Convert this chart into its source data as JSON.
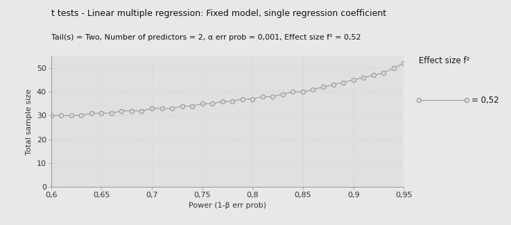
{
  "title": "t tests - Linear multiple regression: Fixed model, single regression coefficient",
  "subtitle": "Tail(s) = Two, Number of predictors = 2, α err prob = 0,001, Effect size f² = 0,52",
  "xlabel": "Power (1-β err prob)",
  "ylabel": "Total sample size",
  "xlim": [
    0.6,
    0.95
  ],
  "ylim": [
    0,
    55
  ],
  "xticks": [
    0.6,
    0.65,
    0.7,
    0.75,
    0.8,
    0.85,
    0.9,
    0.95
  ],
  "xtick_labels": [
    "0,6",
    "0,65",
    "0,7",
    "0,75",
    "0,8",
    "0,85",
    "0,9",
    "0,95"
  ],
  "yticks": [
    0,
    10,
    20,
    30,
    40,
    50
  ],
  "ytick_labels": [
    "0",
    "10",
    "20",
    "30",
    "40",
    "50"
  ],
  "x_values": [
    0.6,
    0.61,
    0.62,
    0.63,
    0.64,
    0.65,
    0.66,
    0.67,
    0.68,
    0.69,
    0.7,
    0.71,
    0.72,
    0.73,
    0.74,
    0.75,
    0.76,
    0.77,
    0.78,
    0.79,
    0.8,
    0.81,
    0.82,
    0.83,
    0.84,
    0.85,
    0.86,
    0.87,
    0.88,
    0.89,
    0.9,
    0.91,
    0.92,
    0.93,
    0.94,
    0.95
  ],
  "y_values": [
    30,
    30,
    30,
    30,
    31,
    31,
    31,
    32,
    32,
    32,
    33,
    33,
    33,
    34,
    34,
    35,
    35,
    36,
    36,
    37,
    37,
    38,
    38,
    39,
    40,
    40,
    41,
    42,
    43,
    44,
    45,
    46,
    47,
    48,
    50,
    52
  ],
  "line_color": "#999999",
  "marker_facecolor": "#d8d8d8",
  "marker_edgecolor": "#999999",
  "bg_color": "#e8e8e8",
  "plot_bg_color": "#e0e0e0",
  "grid_color": "#c8c8c8",
  "legend_label": "= 0,52",
  "legend_title": "Effect size f²",
  "title_fontsize": 9,
  "subtitle_fontsize": 8,
  "label_fontsize": 8,
  "tick_fontsize": 8,
  "legend_fontsize": 8.5
}
